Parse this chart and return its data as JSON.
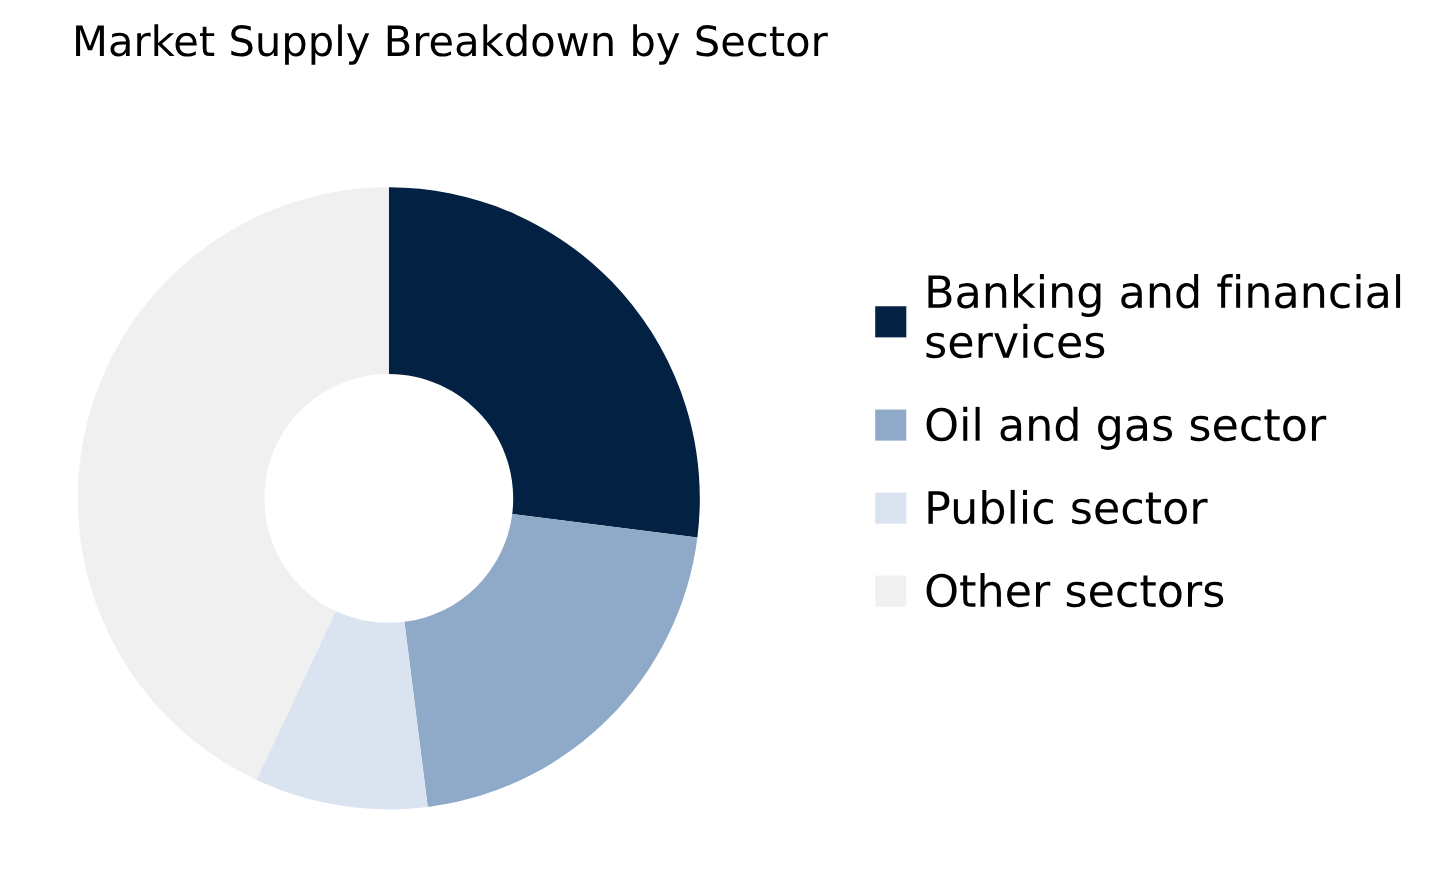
{
  "chart_data": {
    "type": "donut",
    "title": "Market Supply Breakdown by Sector",
    "categories": [
      "Banking and financial\nservices",
      "Oil and gas sector",
      "Public sector",
      "Other sectors"
    ],
    "values": [
      27,
      21,
      9,
      43
    ],
    "colors": [
      "#032142",
      "#8eaac8",
      "#dae3f0",
      "#f0f0f0"
    ],
    "legend": "right"
  }
}
